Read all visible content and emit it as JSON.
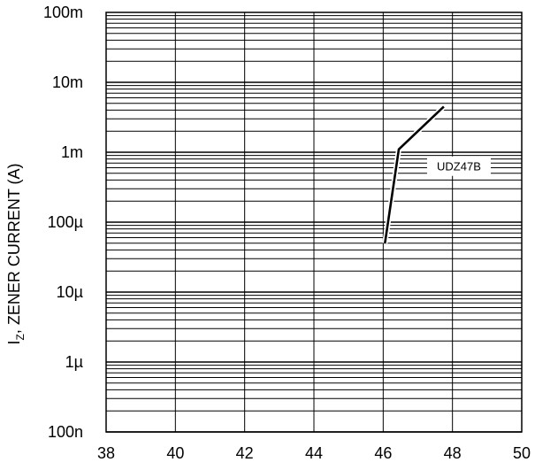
{
  "chart_data": {
    "type": "line",
    "title": "",
    "xlabel": "",
    "ylabel": "I_Z, ZENER CURRENT (A)",
    "ylabel_parts": {
      "base": "I",
      "subscript": "Z",
      "rest": ", ZENER CURRENT (A)"
    },
    "x_scale": "linear",
    "y_scale": "log",
    "xlim": [
      38,
      50
    ],
    "ylim": [
      1e-07,
      0.1
    ],
    "x_ticks": [
      {
        "value": 38,
        "label": "38"
      },
      {
        "value": 40,
        "label": "40"
      },
      {
        "value": 42,
        "label": "42"
      },
      {
        "value": 44,
        "label": "44"
      },
      {
        "value": 46,
        "label": "46"
      },
      {
        "value": 48,
        "label": "48"
      },
      {
        "value": 50,
        "label": "50"
      }
    ],
    "y_ticks": [
      {
        "value": 1e-07,
        "label": "100n"
      },
      {
        "value": 1e-06,
        "label": "1µ"
      },
      {
        "value": 1e-05,
        "label": "10µ"
      },
      {
        "value": 0.0001,
        "label": "100µ"
      },
      {
        "value": 0.001,
        "label": "1m"
      },
      {
        "value": 0.01,
        "label": "10m"
      },
      {
        "value": 0.1,
        "label": "100m"
      }
    ],
    "grid": true,
    "series": [
      {
        "name": "UDZ47B",
        "points": [
          {
            "x": 46.05,
            "y": 5e-05
          },
          {
            "x": 46.45,
            "y": 0.0011
          },
          {
            "x": 47.75,
            "y": 0.0045
          }
        ]
      }
    ],
    "colors": {
      "line": "#000000",
      "grid": "#000000",
      "background": "#ffffff"
    }
  }
}
